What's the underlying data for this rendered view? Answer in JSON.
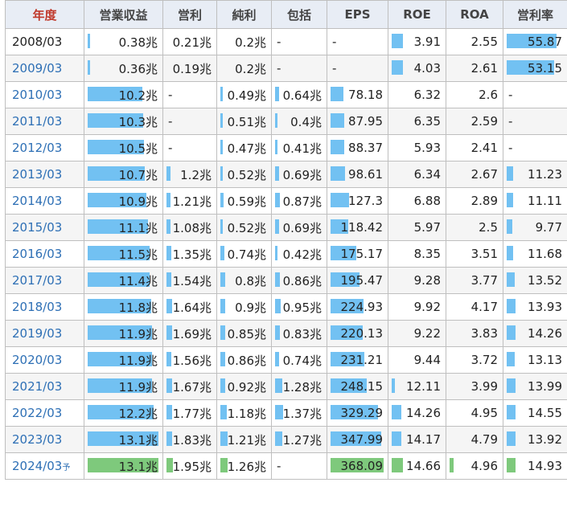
{
  "headers": [
    "年度",
    "営業収益",
    "営利",
    "純利",
    "包括",
    "EPS",
    "ROE",
    "ROA",
    "営利率"
  ],
  "forecast_mark": "予",
  "rows": [
    {
      "year": "2008/03",
      "link": false,
      "cells": [
        "0.38兆",
        "0.21兆",
        "0.2兆",
        "-",
        "-",
        "3.91",
        "2.55",
        "55.87"
      ],
      "bars": [
        0.03,
        0,
        0,
        0,
        0,
        0.22,
        0,
        0.88
      ]
    },
    {
      "year": "2009/03",
      "link": true,
      "cells": [
        "0.36兆",
        "0.19兆",
        "0.2兆",
        "-",
        "-",
        "4.03",
        "2.61",
        "53.15"
      ],
      "bars": [
        0.03,
        0,
        0,
        0,
        0,
        0.22,
        0,
        0.84
      ]
    },
    {
      "year": "2010/03",
      "link": true,
      "cells": [
        "10.2兆",
        "-",
        "0.49兆",
        "0.64兆",
        "78.18",
        "6.32",
        "2.6",
        "-"
      ],
      "bars": [
        0.77,
        0,
        0.06,
        0.08,
        0.24,
        0,
        0,
        0
      ]
    },
    {
      "year": "2011/03",
      "link": true,
      "cells": [
        "10.3兆",
        "-",
        "0.51兆",
        "0.4兆",
        "87.95",
        "6.35",
        "2.59",
        "-"
      ],
      "bars": [
        0.78,
        0,
        0.06,
        0.05,
        0.26,
        0,
        0,
        0
      ]
    },
    {
      "year": "2012/03",
      "link": true,
      "cells": [
        "10.5兆",
        "-",
        "0.47兆",
        "0.41兆",
        "88.37",
        "5.93",
        "2.41",
        "-"
      ],
      "bars": [
        0.8,
        0,
        0.06,
        0.05,
        0.26,
        0,
        0,
        0
      ]
    },
    {
      "year": "2013/03",
      "link": true,
      "cells": [
        "10.7兆",
        "1.2兆",
        "0.52兆",
        "0.69兆",
        "98.61",
        "6.34",
        "2.67",
        "11.23"
      ],
      "bars": [
        0.81,
        0.09,
        0.06,
        0.09,
        0.27,
        0,
        0,
        0.12
      ]
    },
    {
      "year": "2014/03",
      "link": true,
      "cells": [
        "10.9兆",
        "1.21兆",
        "0.59兆",
        "0.87兆",
        "127.3",
        "6.88",
        "2.89",
        "11.11"
      ],
      "bars": [
        0.83,
        0.09,
        0.07,
        0.11,
        0.35,
        0,
        0,
        0.12
      ]
    },
    {
      "year": "2015/03",
      "link": true,
      "cells": [
        "11.1兆",
        "1.08兆",
        "0.52兆",
        "0.69兆",
        "118.42",
        "5.97",
        "2.5",
        "9.77"
      ],
      "bars": [
        0.85,
        0.08,
        0.06,
        0.09,
        0.33,
        0,
        0,
        0.1
      ]
    },
    {
      "year": "2016/03",
      "link": true,
      "cells": [
        "11.5兆",
        "1.35兆",
        "0.74兆",
        "0.42兆",
        "175.17",
        "8.35",
        "3.51",
        "11.68"
      ],
      "bars": [
        0.88,
        0.1,
        0.09,
        0.05,
        0.48,
        0,
        0,
        0.12
      ]
    },
    {
      "year": "2017/03",
      "link": true,
      "cells": [
        "11.4兆",
        "1.54兆",
        "0.8兆",
        "0.86兆",
        "195.47",
        "9.28",
        "3.77",
        "13.52"
      ],
      "bars": [
        0.87,
        0.11,
        0.1,
        0.11,
        0.54,
        0,
        0,
        0.14
      ]
    },
    {
      "year": "2018/03",
      "link": true,
      "cells": [
        "11.8兆",
        "1.64兆",
        "0.9兆",
        "0.95兆",
        "224.93",
        "9.92",
        "4.17",
        "13.93"
      ],
      "bars": [
        0.9,
        0.12,
        0.11,
        0.12,
        0.62,
        0,
        0,
        0.15
      ]
    },
    {
      "year": "2019/03",
      "link": true,
      "cells": [
        "11.9兆",
        "1.69兆",
        "0.85兆",
        "0.83兆",
        "220.13",
        "9.22",
        "3.83",
        "14.26"
      ],
      "bars": [
        0.91,
        0.12,
        0.1,
        0.1,
        0.6,
        0,
        0,
        0.15
      ]
    },
    {
      "year": "2020/03",
      "link": true,
      "cells": [
        "11.9兆",
        "1.56兆",
        "0.86兆",
        "0.74兆",
        "231.21",
        "9.44",
        "3.72",
        "13.13"
      ],
      "bars": [
        0.91,
        0.11,
        0.1,
        0.09,
        0.63,
        0,
        0,
        0.14
      ]
    },
    {
      "year": "2021/03",
      "link": true,
      "cells": [
        "11.9兆",
        "1.67兆",
        "0.92兆",
        "1.28兆",
        "248.15",
        "12.11",
        "3.99",
        "13.99"
      ],
      "bars": [
        0.91,
        0.12,
        0.11,
        0.16,
        0.68,
        0.06,
        0,
        0.15
      ]
    },
    {
      "year": "2022/03",
      "link": true,
      "cells": [
        "12.2兆",
        "1.77兆",
        "1.18兆",
        "1.37兆",
        "329.29",
        "14.26",
        "4.95",
        "14.55"
      ],
      "bars": [
        0.93,
        0.13,
        0.14,
        0.17,
        0.9,
        0.2,
        0,
        0.16
      ]
    },
    {
      "year": "2023/03",
      "link": true,
      "cells": [
        "13.1兆",
        "1.83兆",
        "1.21兆",
        "1.27兆",
        "347.99",
        "14.17",
        "4.79",
        "13.92"
      ],
      "bars": [
        1.0,
        0.13,
        0.15,
        0.16,
        0.95,
        0.2,
        0,
        0.15
      ]
    },
    {
      "year": "2024/03",
      "link": true,
      "forecast": true,
      "cells": [
        "13.1兆",
        "1.95兆",
        "1.26兆",
        "-",
        "368.09",
        "14.66",
        "4.96",
        "14.93"
      ],
      "bars": [
        1.0,
        0.14,
        0.15,
        0,
        1.0,
        0.23,
        0.08,
        0.16
      ]
    }
  ]
}
